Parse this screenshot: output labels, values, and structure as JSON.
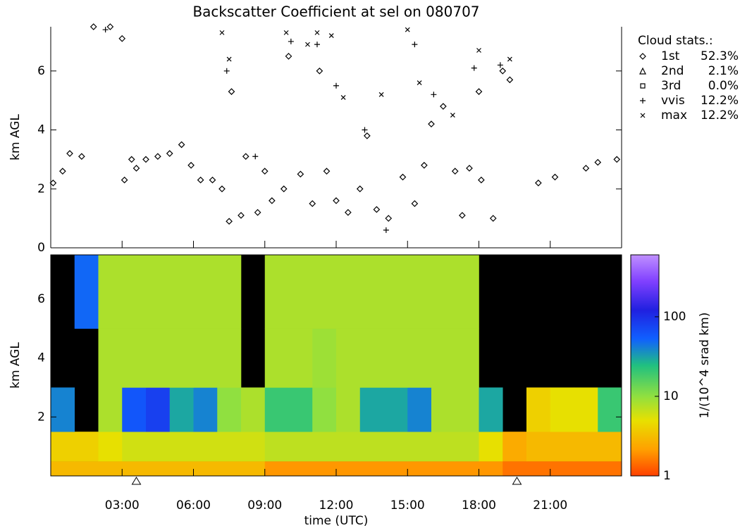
{
  "chart_data": [
    {
      "type": "scatter",
      "title": "Backscatter Coefficient at sel on 080707",
      "ylabel": "km AGL",
      "xlim": [
        0,
        24
      ],
      "ylim": [
        0,
        7.5
      ],
      "yticks": [
        0,
        2,
        4,
        6
      ],
      "legend_title": "Cloud stats.:",
      "series": [
        {
          "name": "1st",
          "marker": "diamond",
          "color": "#000000",
          "stat": 52.3,
          "stat_label": "52.3%",
          "x": [
            0.1,
            0.5,
            0.8,
            1.3,
            1.8,
            2.5,
            3,
            3.1,
            3.4,
            3.6,
            4,
            4.5,
            5,
            5.5,
            5.9,
            6.3,
            6.8,
            7.2,
            7.5,
            7.6,
            8,
            8.2,
            8.7,
            9,
            9.3,
            9.8,
            10,
            10.5,
            11,
            11.3,
            11.6,
            12,
            12.5,
            13,
            13.3,
            13.7,
            14.2,
            14.8,
            15.3,
            15.7,
            16,
            16.5,
            17,
            17.3,
            17.6,
            18,
            18.1,
            18.6,
            19,
            19.3,
            20.5,
            21.2,
            22.5,
            23,
            23.8
          ],
          "y": [
            2.2,
            2.6,
            3.2,
            3.1,
            7.5,
            7.5,
            7.1,
            2.3,
            3.0,
            2.7,
            3.0,
            3.1,
            3.2,
            3.5,
            2.8,
            2.3,
            2.3,
            2.0,
            0.9,
            5.3,
            1.1,
            3.1,
            1.2,
            2.6,
            1.6,
            2.0,
            6.5,
            2.5,
            1.5,
            6.0,
            2.6,
            1.6,
            1.2,
            2.0,
            3.8,
            1.3,
            1.0,
            2.4,
            1.5,
            2.8,
            4.2,
            4.8,
            2.6,
            1.1,
            2.7,
            5.3,
            2.3,
            1.0,
            6.0,
            5.7,
            2.2,
            2.4,
            2.7,
            2.9,
            3.0
          ]
        },
        {
          "name": "2nd",
          "marker": "triangle",
          "color": "#000000",
          "stat": 2.1,
          "stat_label": "2.1%",
          "x": [],
          "y": []
        },
        {
          "name": "3rd",
          "marker": "square",
          "color": "#000000",
          "stat": 0,
          "stat_label": "0.0%",
          "x": [],
          "y": []
        },
        {
          "name": "vvis",
          "marker": "plus",
          "color": "#000000",
          "stat": 12.2,
          "stat_label": "12.2%",
          "x": [
            2.3,
            7.4,
            8.6,
            10.1,
            11.2,
            12,
            13.2,
            14.1,
            15.3,
            16.1,
            17.8,
            18.9
          ],
          "y": [
            7.4,
            6.0,
            3.1,
            7.0,
            6.9,
            5.5,
            4.0,
            0.6,
            6.9,
            5.2,
            6.1,
            6.2
          ]
        },
        {
          "name": "max",
          "marker": "cross",
          "color": "#000000",
          "stat": 12.2,
          "stat_label": "12.2%",
          "x": [
            7.2,
            7.5,
            9.9,
            10.8,
            11.2,
            11.8,
            12.3,
            13.9,
            15,
            15.5,
            16.9,
            18,
            19.3
          ],
          "y": [
            7.3,
            6.4,
            7.3,
            6.9,
            7.3,
            7.2,
            5.1,
            5.2,
            7.4,
            5.6,
            4.5,
            6.7,
            6.4
          ]
        }
      ]
    },
    {
      "type": "heatmap",
      "xlabel": "time (UTC)",
      "ylabel": "km AGL",
      "clabel": "1/(10^4 srad km)",
      "xlim": [
        0,
        24
      ],
      "ylim": [
        0,
        7.5
      ],
      "yticks": [
        2,
        4,
        6
      ],
      "xticks": [
        {
          "value": 3,
          "label": "03:00"
        },
        {
          "value": 6,
          "label": "06:00"
        },
        {
          "value": 9,
          "label": "09:00"
        },
        {
          "value": 12,
          "label": "12:00"
        },
        {
          "value": 15,
          "label": "15:00"
        },
        {
          "value": 18,
          "label": "18:00"
        },
        {
          "value": 21,
          "label": "21:00"
        }
      ],
      "x_edges": [
        0,
        1,
        2,
        3,
        4,
        5,
        6,
        7,
        8,
        9,
        10,
        11,
        12,
        13,
        14,
        15,
        16,
        17,
        18,
        19,
        20,
        21,
        22,
        23,
        24
      ],
      "y_edges": [
        0,
        0.5,
        1.5,
        3,
        5,
        7.5
      ],
      "z": [
        [
          3,
          3,
          3,
          3,
          3,
          3,
          3,
          3,
          3,
          2,
          2,
          2,
          2,
          2,
          2,
          2,
          2,
          2,
          2,
          1.5,
          1.5,
          1.5,
          1.5,
          1.5
        ],
        [
          4,
          4,
          5,
          6,
          6,
          6,
          6,
          6,
          6,
          7,
          7,
          7,
          7,
          7,
          7,
          7,
          7,
          7,
          5,
          2.5,
          3,
          3,
          3,
          3
        ],
        [
          40,
          null,
          8,
          60,
          80,
          30,
          40,
          10,
          8,
          20,
          20,
          10,
          8,
          30,
          30,
          40,
          8,
          8,
          30,
          null,
          4,
          5,
          5,
          20
        ],
        [
          null,
          null,
          8,
          8,
          8,
          8,
          8,
          8,
          null,
          8,
          8,
          9,
          8,
          8,
          8,
          8,
          8,
          8,
          null,
          null,
          null,
          null,
          null,
          null
        ],
        [
          null,
          50,
          8,
          8,
          8,
          8,
          8,
          8,
          null,
          8,
          8,
          8,
          8,
          8,
          8,
          8,
          8,
          8,
          null,
          null,
          null,
          null,
          null,
          null
        ]
      ],
      "clim": [
        1,
        600
      ],
      "cticks": [
        1,
        10,
        100
      ],
      "log_color": true,
      "markers_x": [
        3.6,
        19.6
      ]
    }
  ]
}
